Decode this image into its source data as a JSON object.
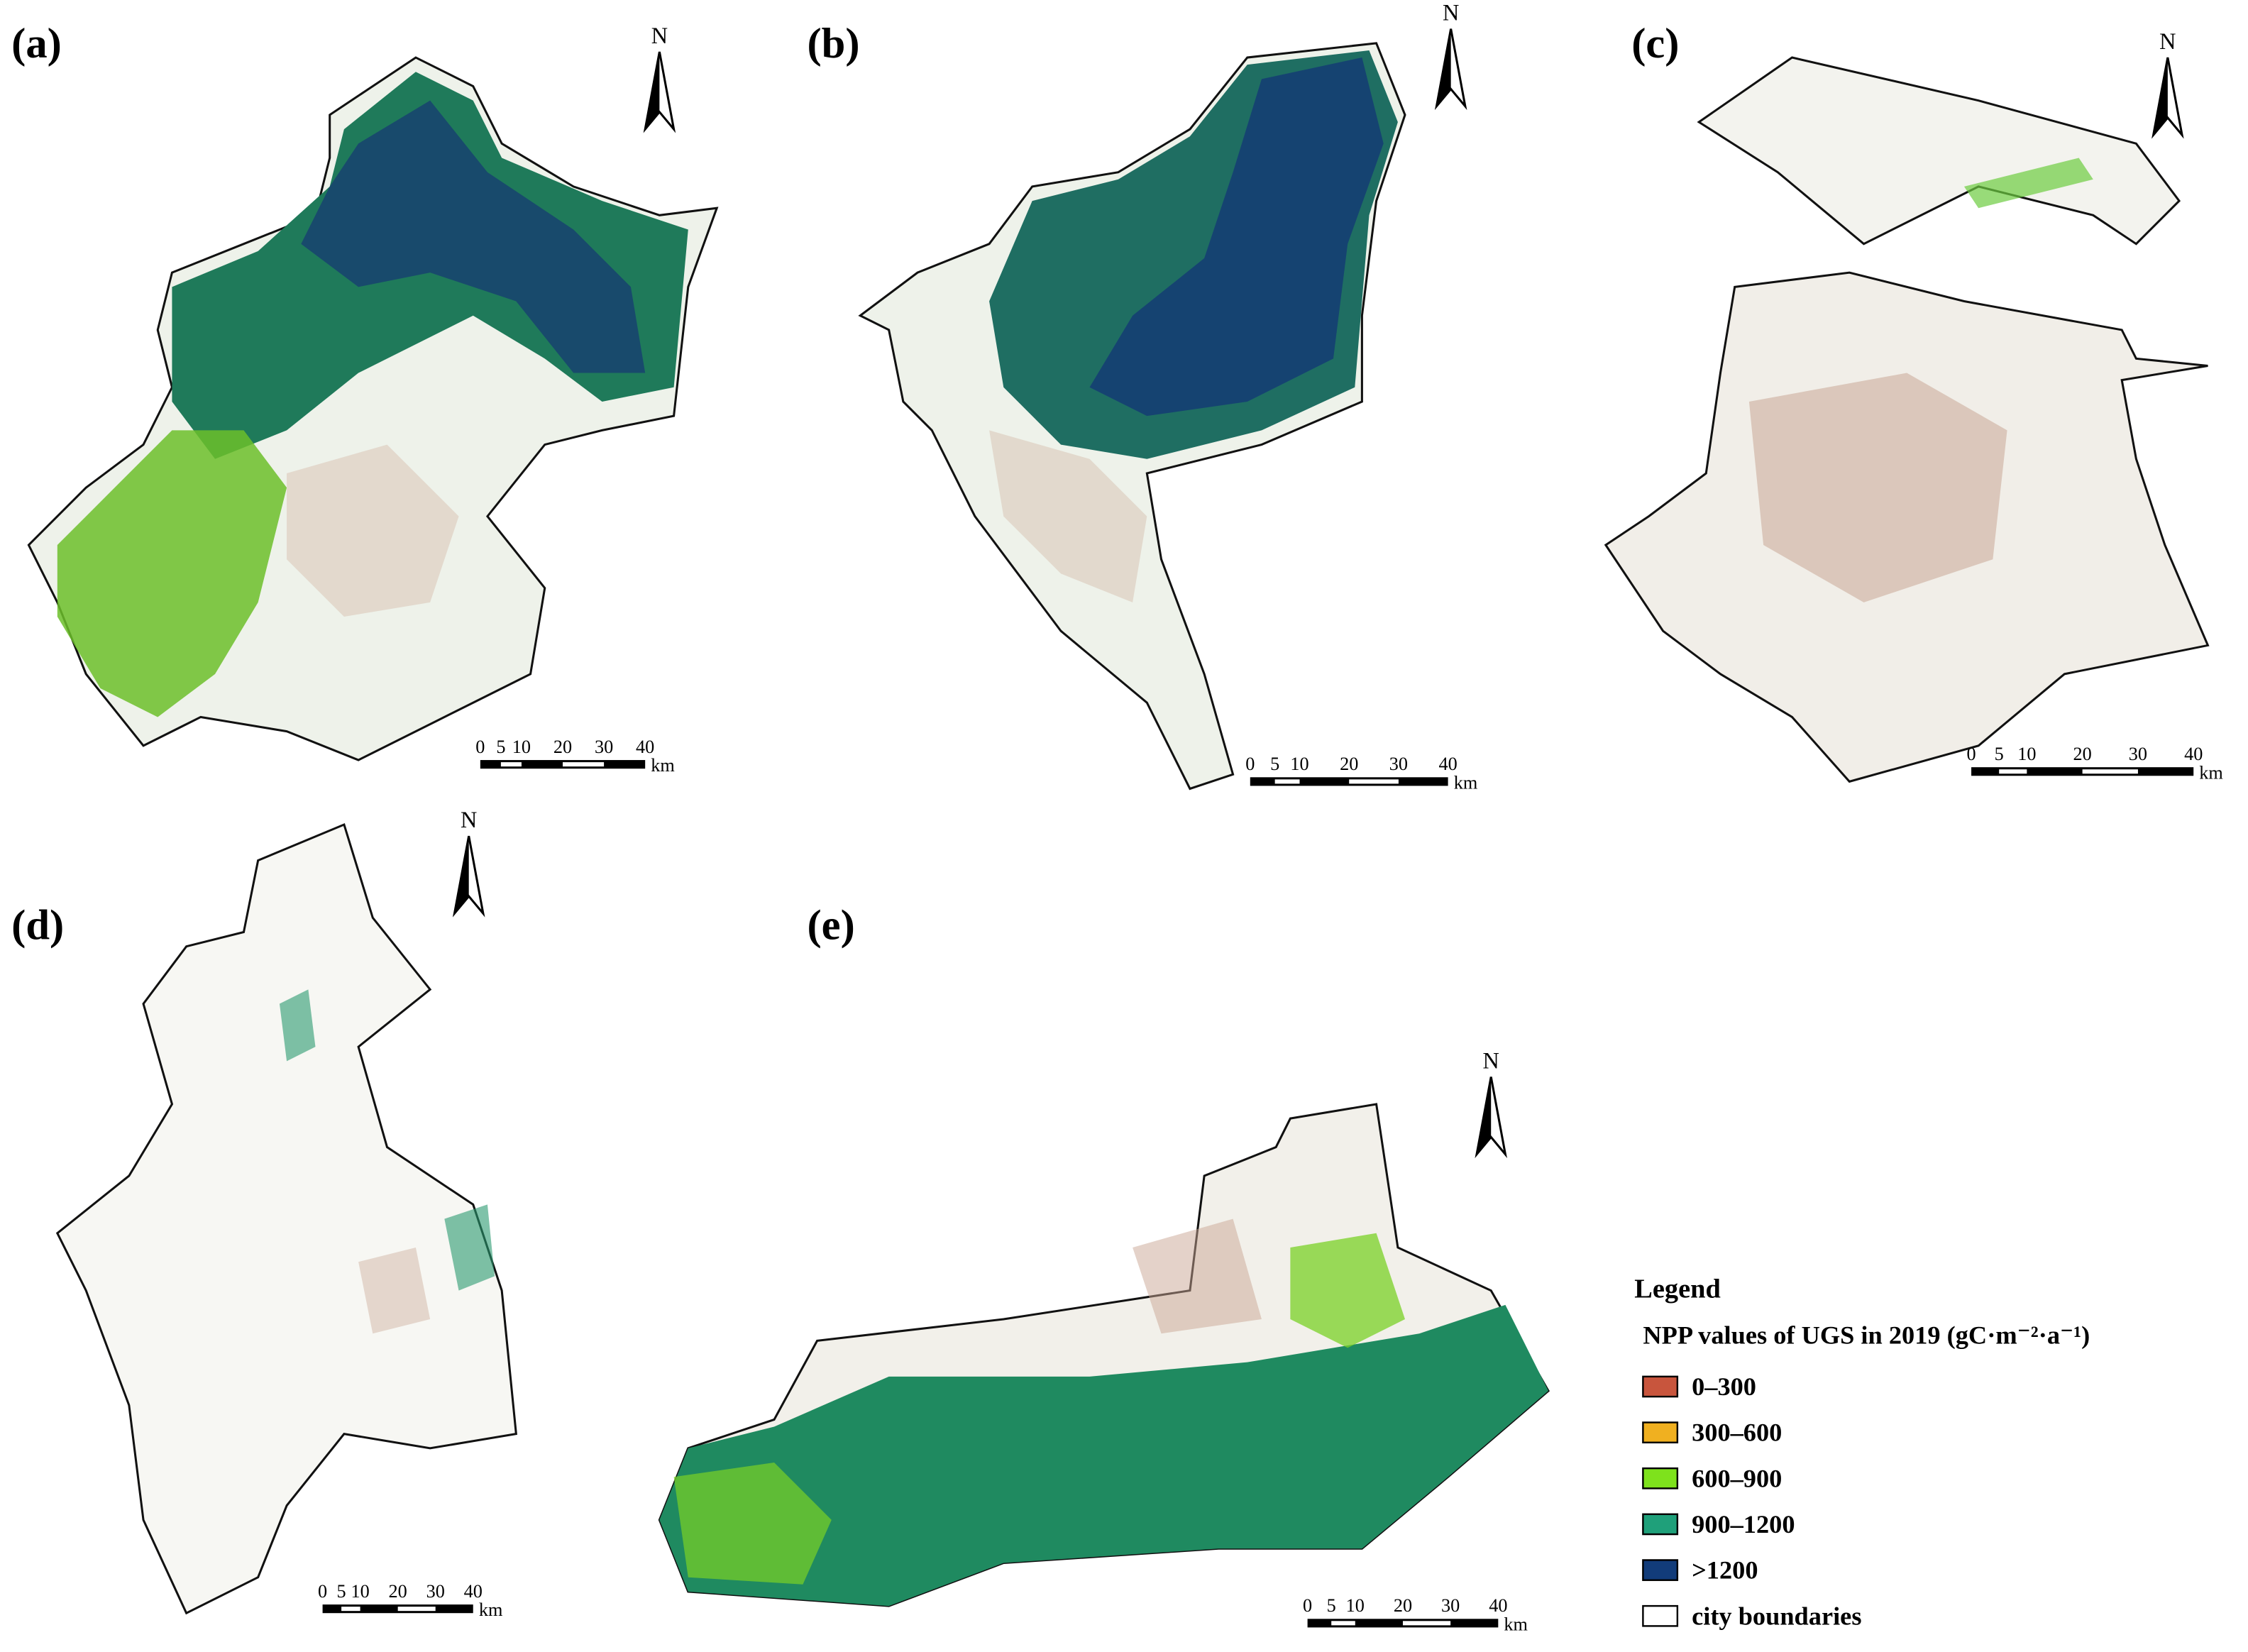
{
  "panels": [
    {
      "label": "(a)",
      "north": "N",
      "scale_labels": [
        "0",
        "5",
        "10",
        "20",
        "30",
        "40"
      ],
      "scale_unit": "km"
    },
    {
      "label": "(b)",
      "north": "N",
      "scale_labels": [
        "0",
        "5",
        "10",
        "20",
        "30",
        "40"
      ],
      "scale_unit": "km"
    },
    {
      "label": "(c)",
      "north": "N",
      "scale_labels": [
        "0",
        "5",
        "10",
        "20",
        "30",
        "40"
      ],
      "scale_unit": "km"
    },
    {
      "label": "(d)",
      "north": "N",
      "scale_labels": [
        "0",
        "5",
        "10",
        "20",
        "30",
        "40"
      ],
      "scale_unit": "km"
    },
    {
      "label": "(e)",
      "north": "N",
      "scale_labels": [
        "0",
        "5",
        "10",
        "20",
        "30",
        "40"
      ],
      "scale_unit": "km"
    }
  ],
  "legend": {
    "title": "Legend",
    "subtitle": "NPP values of UGS in 2019 (gC·m⁻²·a⁻¹)",
    "items": [
      {
        "label": "0–300",
        "color": "#c8553d"
      },
      {
        "label": "300–600",
        "color": "#f0b020"
      },
      {
        "label": "600–900",
        "color": "#7ee21c"
      },
      {
        "label": "900–1200",
        "color": "#1fa07a"
      },
      {
        "label": ">1200",
        "color": "#123c7a"
      },
      {
        "label": "city boundaries",
        "color": "#ffffff"
      }
    ]
  }
}
